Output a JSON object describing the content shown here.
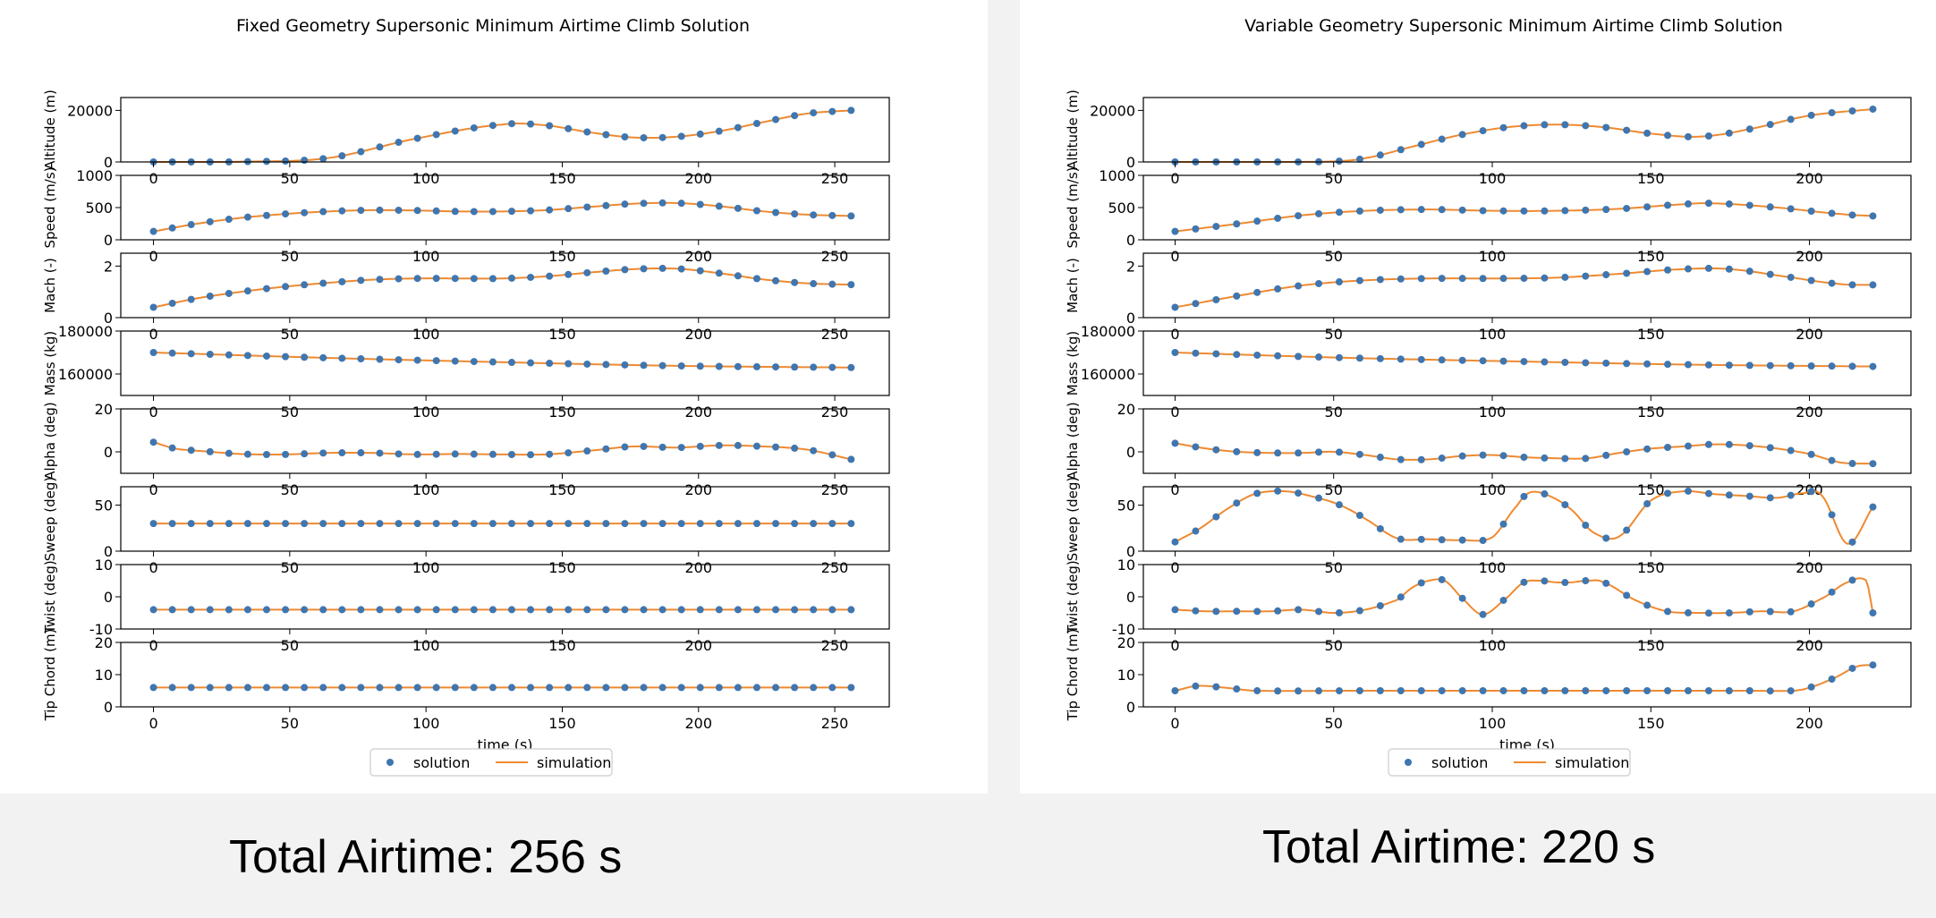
{
  "colors": {
    "solution": "#3f76b0",
    "simulation": "#ef8a30",
    "axes": "#000000",
    "panel_bg": "#ffffff",
    "page_bg": "#f2f2f2"
  },
  "chart_data": [
    {
      "type": "line",
      "title": "Fixed Geometry Supersonic Minimum Airtime Climb Solution",
      "xlabel": "time (s)",
      "xlim": [
        -12,
        270
      ],
      "xticks": [
        0,
        50,
        100,
        150,
        200,
        250
      ],
      "legend": {
        "placement": "bottom-center",
        "entries": [
          "solution",
          "simulation"
        ]
      },
      "series_names": [
        "solution",
        "simulation"
      ],
      "total_airtime_label": "Total Airtime:  256 s",
      "subplots": [
        {
          "ylabel": "Altitude (m)",
          "ylim": [
            0,
            25000
          ],
          "yticks": [
            0,
            20000
          ],
          "t": [
            0,
            32,
            64,
            96,
            128,
            144,
            160,
            176,
            192,
            208,
            224,
            240,
            256
          ],
          "y": [
            0,
            100,
            1500,
            9000,
            14500,
            14200,
            11500,
            9500,
            9800,
            12000,
            15500,
            18800,
            20000
          ]
        },
        {
          "ylabel": "Speed (m/s)",
          "ylim": [
            0,
            1000
          ],
          "yticks": [
            0,
            500,
            1000
          ],
          "t": [
            0,
            16,
            32,
            48,
            64,
            80,
            96,
            112,
            128,
            144,
            160,
            176,
            192,
            208,
            224,
            240,
            256
          ],
          "y": [
            130,
            250,
            340,
            400,
            440,
            460,
            455,
            440,
            440,
            460,
            510,
            560,
            570,
            520,
            440,
            390,
            370
          ]
        },
        {
          "ylabel": "Mach (-)",
          "ylim": [
            0,
            2.5
          ],
          "yticks": [
            0,
            2
          ],
          "t": [
            0,
            16,
            32,
            48,
            64,
            80,
            96,
            112,
            128,
            144,
            160,
            176,
            192,
            208,
            224,
            240,
            256
          ],
          "y": [
            0.4,
            0.75,
            1.0,
            1.2,
            1.35,
            1.47,
            1.52,
            1.52,
            1.52,
            1.6,
            1.75,
            1.88,
            1.9,
            1.72,
            1.48,
            1.33,
            1.28
          ]
        },
        {
          "ylabel": "Mass (kg)",
          "ylim": [
            150000,
            180000
          ],
          "yticks": [
            160000,
            180000
          ],
          "t": [
            0,
            64,
            128,
            192,
            256
          ],
          "y": [
            170000,
            167500,
            165500,
            163800,
            163000
          ]
        },
        {
          "ylabel": "Alpha (deg)",
          "ylim": [
            -10,
            20
          ],
          "yticks": [
            0,
            20
          ],
          "t": [
            0,
            8,
            16,
            32,
            48,
            64,
            80,
            96,
            112,
            128,
            144,
            160,
            176,
            192,
            208,
            224,
            240,
            256
          ],
          "y": [
            4.5,
            1.5,
            0.5,
            -1,
            -1.2,
            -0.5,
            -0.5,
            -1.2,
            -1,
            -1.2,
            -1.2,
            0.5,
            2.5,
            2,
            3,
            2.5,
            1,
            -3.5
          ]
        },
        {
          "ylabel": "Sweep (deg)",
          "ylim": [
            0,
            70
          ],
          "yticks": [
            0,
            50
          ],
          "t": [
            0,
            256
          ],
          "y": [
            30,
            30
          ]
        },
        {
          "ylabel": "Twist (deg)",
          "ylim": [
            -10,
            10
          ],
          "yticks": [
            -10,
            0,
            10
          ],
          "t": [
            0,
            256
          ],
          "y": [
            -4,
            -4
          ]
        },
        {
          "ylabel": "Tip Chord (m)",
          "ylim": [
            0,
            20
          ],
          "yticks": [
            0,
            10,
            20
          ],
          "t": [
            0,
            256
          ],
          "y": [
            6,
            6
          ]
        }
      ]
    },
    {
      "type": "line",
      "title": "Variable Geometry Supersonic Minimum Airtime Climb Solution",
      "xlabel": "time (s)",
      "xlim": [
        -10,
        232
      ],
      "xticks": [
        0,
        50,
        100,
        150,
        200
      ],
      "legend": {
        "placement": "bottom-center",
        "entries": [
          "solution",
          "simulation"
        ]
      },
      "series_names": [
        "solution",
        "simulation"
      ],
      "total_airtime_label": "Total Airtime:  220 s",
      "subplots": [
        {
          "ylabel": "Altitude (m)",
          "ylim": [
            0,
            25000
          ],
          "yticks": [
            0,
            20000
          ],
          "t": [
            0,
            30,
            50,
            60,
            75,
            90,
            105,
            120,
            135,
            150,
            165,
            180,
            200,
            220
          ],
          "y": [
            0,
            0,
            200,
            1500,
            6000,
            10500,
            13500,
            14500,
            13500,
            11000,
            9800,
            12500,
            18000,
            20500
          ]
        },
        {
          "ylabel": "Speed (m/s)",
          "ylim": [
            0,
            1000
          ],
          "yticks": [
            0,
            500,
            1000
          ],
          "t": [
            0,
            20,
            40,
            60,
            80,
            100,
            120,
            140,
            160,
            170,
            190,
            210,
            220
          ],
          "y": [
            130,
            250,
            380,
            450,
            470,
            450,
            450,
            480,
            550,
            565,
            500,
            400,
            370
          ]
        },
        {
          "ylabel": "Mach (-)",
          "ylim": [
            0,
            2.5
          ],
          "yticks": [
            0,
            2
          ],
          "t": [
            0,
            20,
            40,
            60,
            80,
            100,
            120,
            140,
            160,
            175,
            195,
            210,
            220
          ],
          "y": [
            0.4,
            0.85,
            1.25,
            1.45,
            1.52,
            1.52,
            1.55,
            1.7,
            1.88,
            1.88,
            1.55,
            1.3,
            1.27
          ]
        },
        {
          "ylabel": "Mass (kg)",
          "ylim": [
            150000,
            180000
          ],
          "yticks": [
            160000,
            180000
          ],
          "t": [
            0,
            55,
            110,
            165,
            220
          ],
          "y": [
            170000,
            167500,
            165800,
            164300,
            163500
          ]
        },
        {
          "ylabel": "Alpha (deg)",
          "ylim": [
            -10,
            20
          ],
          "yticks": [
            0,
            20
          ],
          "t": [
            0,
            10,
            20,
            30,
            40,
            50,
            60,
            70,
            80,
            90,
            100,
            110,
            120,
            130,
            140,
            150,
            160,
            170,
            180,
            190,
            200,
            210,
            220
          ],
          "y": [
            4,
            1.5,
            0,
            -0.5,
            -0.5,
            0,
            -1.5,
            -3.5,
            -3.5,
            -2,
            -1.5,
            -2.5,
            -3,
            -3,
            -0.5,
            1.5,
            2.5,
            3.5,
            3,
            1.5,
            -1,
            -5,
            -5.5
          ]
        },
        {
          "ylabel": "Sweep (deg)",
          "ylim": [
            0,
            70
          ],
          "yticks": [
            0,
            50
          ],
          "t": [
            0,
            8,
            16,
            25,
            35,
            45,
            52,
            60,
            70,
            80,
            90,
            100,
            108,
            112,
            118,
            125,
            132,
            140,
            150,
            160,
            170,
            180,
            190,
            198,
            204,
            212,
            220
          ],
          "y": [
            10,
            25,
            45,
            62,
            65,
            58,
            50,
            35,
            14,
            13,
            12,
            15,
            50,
            64,
            60,
            45,
            20,
            16,
            55,
            65,
            62,
            60,
            58,
            63,
            60,
            8,
            48
          ]
        },
        {
          "ylabel": "Twist (deg)",
          "ylim": [
            -10,
            10
          ],
          "yticks": [
            -10,
            0,
            10
          ],
          "t": [
            0,
            10,
            20,
            30,
            40,
            50,
            60,
            70,
            75,
            80,
            85,
            90,
            97,
            105,
            110,
            115,
            120,
            125,
            130,
            135,
            145,
            155,
            165,
            175,
            185,
            195,
            205,
            212,
            218,
            220
          ],
          "y": [
            -4,
            -4.5,
            -4.5,
            -4.5,
            -4,
            -5,
            -4,
            -1,
            3,
            5,
            5,
            0,
            -5.5,
            0,
            4.5,
            5,
            4.5,
            4.5,
            5,
            4.5,
            -1,
            -4.5,
            -5,
            -5,
            -4.5,
            -4.5,
            0,
            4.5,
            5,
            -5
          ]
        },
        {
          "ylabel": "Tip Chord (m)",
          "ylim": [
            0,
            20
          ],
          "yticks": [
            0,
            10,
            20
          ],
          "t": [
            0,
            7,
            15,
            25,
            60,
            120,
            180,
            195,
            200,
            208,
            215,
            220
          ],
          "y": [
            5,
            6.5,
            6,
            5,
            5,
            5,
            5,
            5,
            6,
            9,
            12.5,
            13
          ]
        }
      ]
    }
  ]
}
